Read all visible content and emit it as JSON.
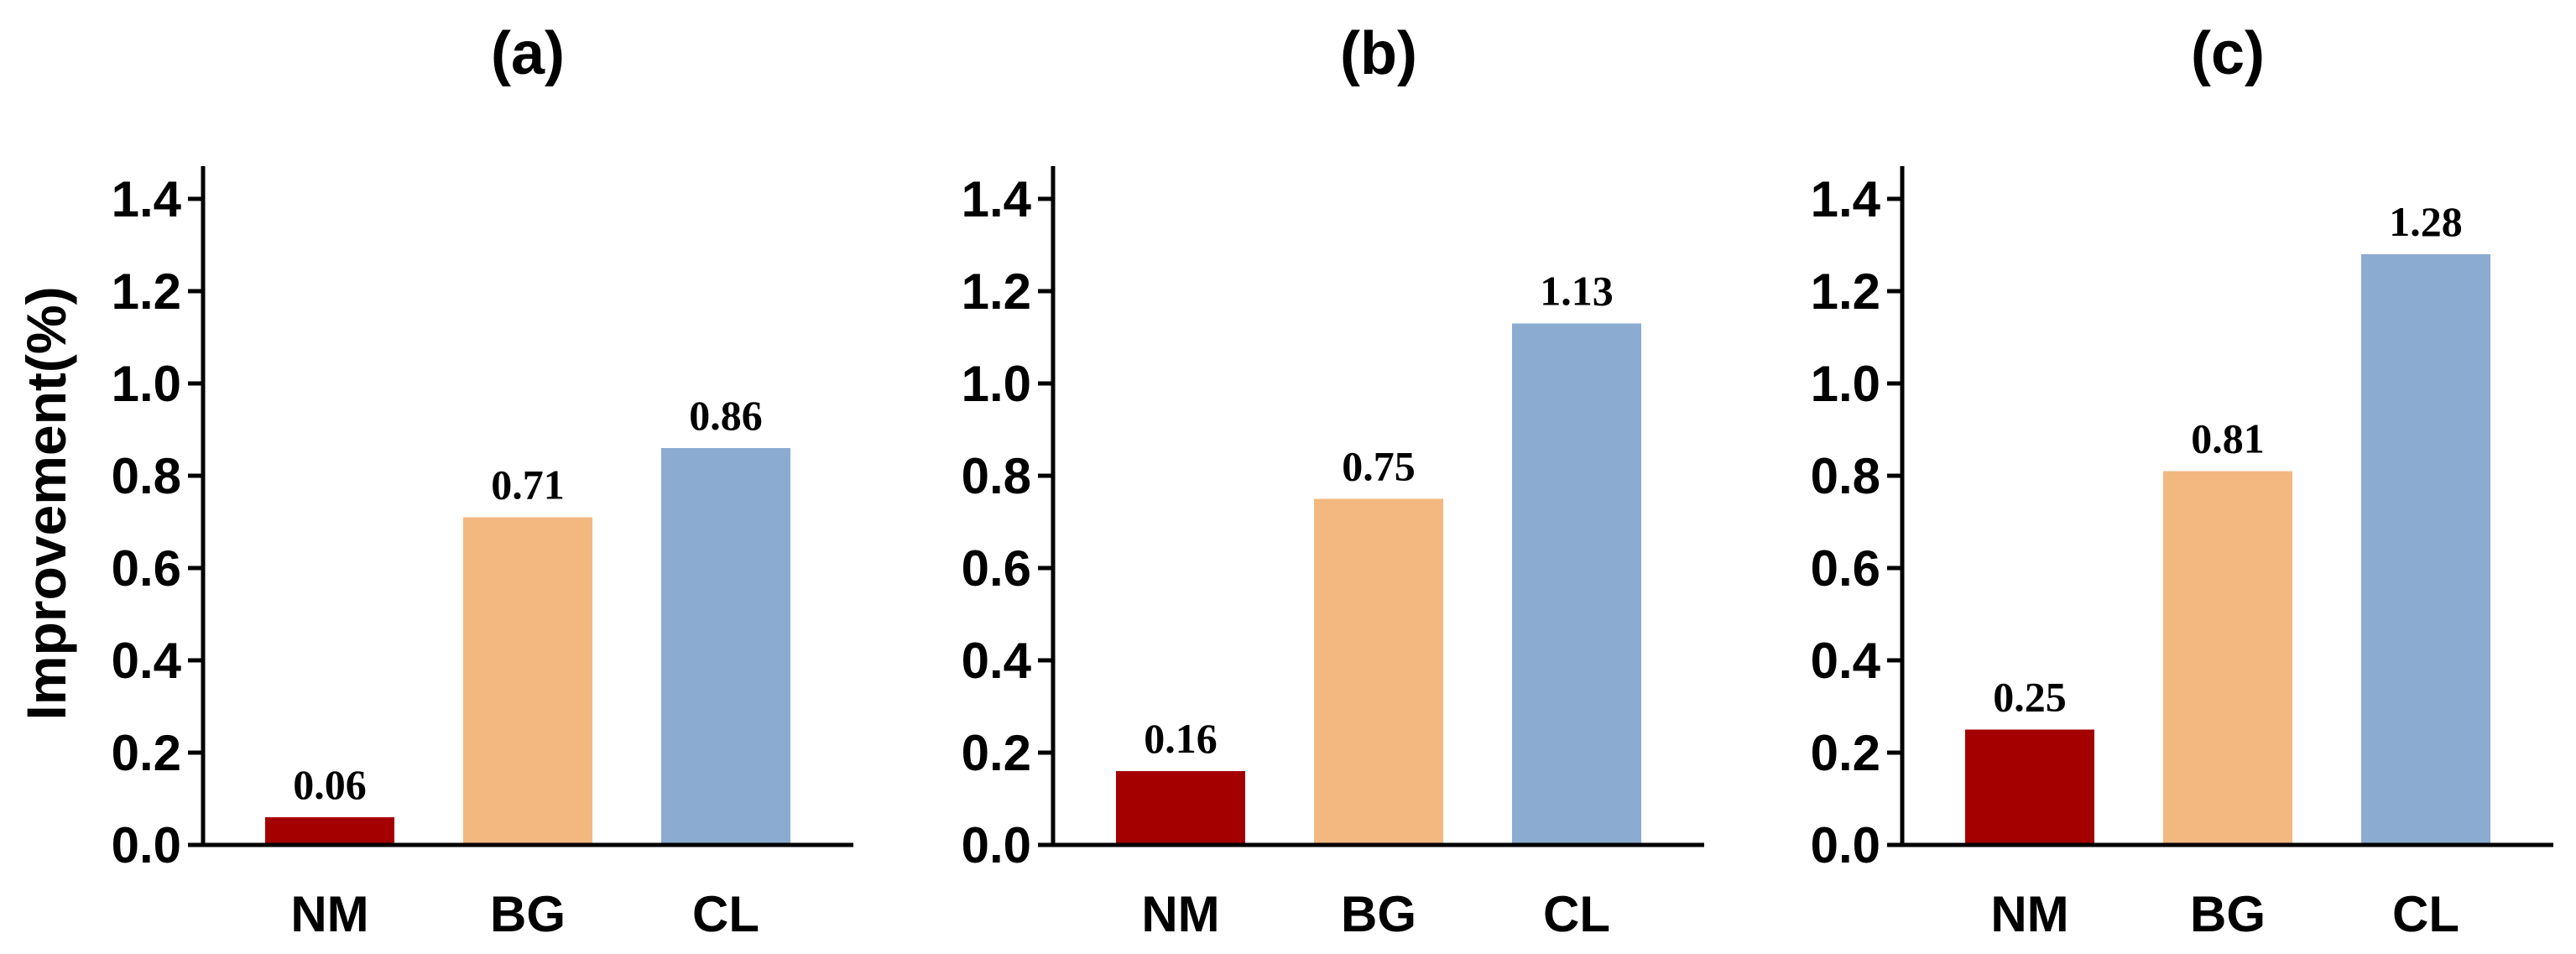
{
  "chart_data": [
    {
      "type": "bar",
      "title": "(a)",
      "ylabel": "Improvement(%)",
      "xlabel": "",
      "ylim": [
        0,
        1.45
      ],
      "yticks": [
        "0.0",
        "0.2",
        "0.4",
        "0.6",
        "0.8",
        "1.0",
        "1.2",
        "1.4"
      ],
      "categories": [
        "NM",
        "BG",
        "CL"
      ],
      "values": [
        0.06,
        0.71,
        0.86
      ],
      "labels": [
        "0.06",
        "0.71",
        "0.86"
      ]
    },
    {
      "type": "bar",
      "title": "(b)",
      "ylabel": "",
      "xlabel": "",
      "ylim": [
        0,
        1.45
      ],
      "yticks": [
        "0.0",
        "0.2",
        "0.4",
        "0.6",
        "0.8",
        "1.0",
        "1.2",
        "1.4"
      ],
      "categories": [
        "NM",
        "BG",
        "CL"
      ],
      "values": [
        0.16,
        0.75,
        1.13
      ],
      "labels": [
        "0.16",
        "0.75",
        "1.13"
      ]
    },
    {
      "type": "bar",
      "title": "(c)",
      "ylabel": "",
      "xlabel": "",
      "ylim": [
        0,
        1.45
      ],
      "yticks": [
        "0.0",
        "0.2",
        "0.4",
        "0.6",
        "0.8",
        "1.0",
        "1.2",
        "1.4"
      ],
      "categories": [
        "NM",
        "BG",
        "CL"
      ],
      "values": [
        0.25,
        0.81,
        1.28
      ],
      "labels": [
        "0.25",
        "0.81",
        "1.28"
      ]
    }
  ],
  "colors": {
    "NM": "#a50000",
    "BG": "#f2b880",
    "CL": "#8babd1"
  }
}
